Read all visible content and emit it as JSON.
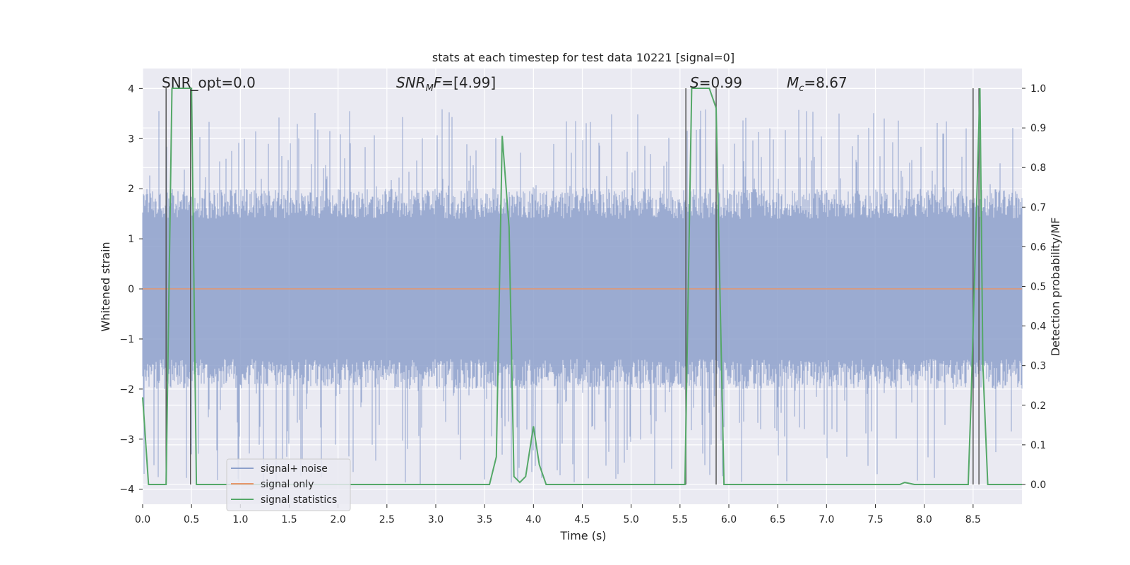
{
  "chart_data": {
    "type": "line",
    "title": "stats at each timestep for test data 10221 [signal=0]",
    "xlabel": "Time (s)",
    "ylabel_left": "Whitened strain",
    "ylabel_right": "Detection probability/MF",
    "xlim": [
      0,
      9
    ],
    "ylim_left": [
      -4.3,
      4.4
    ],
    "ylim_right": [
      -0.05,
      1.05
    ],
    "x_ticks": [
      0.0,
      0.5,
      1.0,
      1.5,
      2.0,
      2.5,
      3.0,
      3.5,
      4.0,
      4.5,
      5.0,
      5.5,
      6.0,
      6.5,
      7.0,
      7.5,
      8.0,
      8.5
    ],
    "x_tick_labels": [
      "0.0",
      "0.5",
      "1.0",
      "1.5",
      "2.0",
      "2.5",
      "3.0",
      "3.5",
      "4.0",
      "4.5",
      "5.0",
      "5.5",
      "6.0",
      "6.5",
      "7.0",
      "7.5",
      "8.0",
      "8.5"
    ],
    "y_left_ticks": [
      4,
      3,
      2,
      1,
      0,
      -1,
      -2,
      -3,
      -4
    ],
    "y_left_tick_labels": [
      "4",
      "3",
      "2",
      "1",
      "0",
      "−1",
      "−2",
      "−3",
      "−4"
    ],
    "y_right_ticks": [
      1.0,
      0.9,
      0.8,
      0.7,
      0.6,
      0.5,
      0.4,
      0.3,
      0.2,
      0.1,
      0.0
    ],
    "y_right_tick_labels": [
      "1.0",
      "0.9",
      "0.8",
      "0.7",
      "0.6",
      "0.5",
      "0.4",
      "0.3",
      "0.2",
      "0.1",
      "0.0"
    ],
    "grid": true,
    "legend_position": "lower-left",
    "annotations": {
      "snr_opt": "SNR_opt=0.0",
      "snr_mf": "=[4.99]",
      "s": "=0.99",
      "mc": "=8.67"
    },
    "series": [
      {
        "name": "signal+ noise",
        "color": "#8da0cb",
        "kind": "noise",
        "envelope_upper": 2.0,
        "envelope_lower": -2.0,
        "peak_max": 3.6,
        "peak_min": -3.9
      },
      {
        "name": "signal only",
        "color": "#e7966a",
        "kind": "line",
        "x": [
          0,
          9
        ],
        "y": [
          0,
          0
        ]
      },
      {
        "name": "signal statistics",
        "color": "#55a868",
        "kind": "line",
        "axis": "right",
        "x": [
          0,
          0.06,
          0.24,
          0.3,
          0.5,
          0.55,
          3.55,
          3.62,
          3.68,
          3.75,
          3.8,
          3.86,
          3.92,
          4.0,
          4.06,
          4.13,
          5.55,
          5.62,
          5.8,
          5.87,
          5.95,
          7.75,
          7.8,
          7.9,
          8.45,
          8.48,
          8.57,
          8.6,
          8.65,
          9.0
        ],
        "y": [
          0.22,
          0.0,
          0.0,
          1.0,
          1.0,
          0.0,
          0.0,
          0.07,
          0.88,
          0.65,
          0.02,
          0.005,
          0.02,
          0.147,
          0.05,
          0.0,
          0.0,
          1.0,
          1.0,
          0.95,
          0.0,
          0.0,
          0.005,
          0.0,
          0.0,
          0.22,
          1.0,
          0.3,
          0.0,
          0.0
        ]
      }
    ],
    "vertical_markers": [
      0.24,
      0.49,
      5.56,
      5.87,
      8.5,
      8.56
    ]
  }
}
